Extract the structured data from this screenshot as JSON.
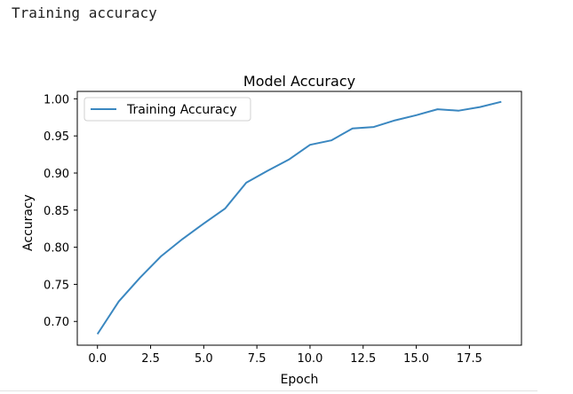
{
  "output_label": "Training accuracy",
  "chart_data": {
    "type": "line",
    "title": "Model Accuracy",
    "xlabel": "Epoch",
    "ylabel": "Accuracy",
    "xlim": [
      -0.95,
      19.95
    ],
    "ylim": [
      0.668,
      1.01
    ],
    "xticks": [
      0.0,
      2.5,
      5.0,
      7.5,
      10.0,
      12.5,
      15.0,
      17.5
    ],
    "xtick_labels": [
      "0.0",
      "2.5",
      "5.0",
      "7.5",
      "10.0",
      "12.5",
      "15.0",
      "17.5"
    ],
    "yticks": [
      0.7,
      0.75,
      0.8,
      0.85,
      0.9,
      0.95,
      1.0
    ],
    "ytick_labels": [
      "0.70",
      "0.75",
      "0.80",
      "0.85",
      "0.90",
      "0.95",
      "1.00"
    ],
    "grid": false,
    "legend_position": "top-left",
    "series": [
      {
        "name": "Training Accuracy",
        "color": "#3a87c0",
        "x": [
          0,
          1,
          2,
          3,
          4,
          5,
          6,
          7,
          8,
          9,
          10,
          11,
          12,
          13,
          14,
          15,
          16,
          17,
          18,
          19
        ],
        "y": [
          0.683,
          0.727,
          0.759,
          0.788,
          0.811,
          0.832,
          0.852,
          0.887,
          0.903,
          0.918,
          0.938,
          0.944,
          0.96,
          0.962,
          0.971,
          0.978,
          0.986,
          0.984,
          0.989,
          0.996
        ]
      }
    ]
  }
}
